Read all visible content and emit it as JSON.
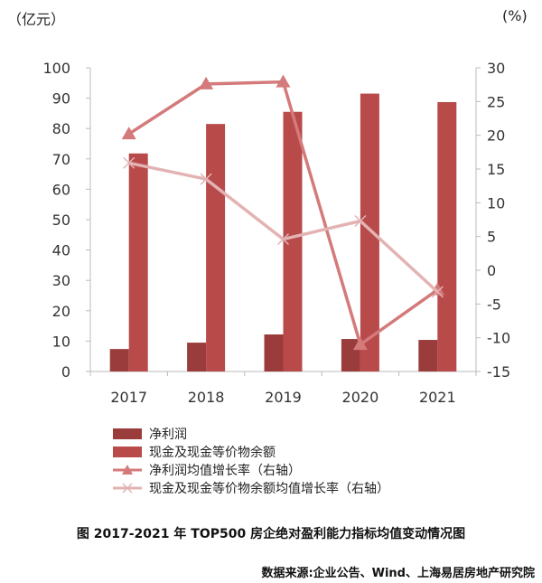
{
  "chart_data": {
    "type": "bar+line",
    "categories": [
      "2017",
      "2018",
      "2019",
      "2020",
      "2021"
    ],
    "left_unit": "（亿元）",
    "right_unit": "(%)",
    "ylim": [
      0,
      100
    ],
    "yticks": [
      0,
      10,
      20,
      30,
      40,
      50,
      60,
      70,
      80,
      90,
      100
    ],
    "y2lim": [
      -15,
      30
    ],
    "y2ticks": [
      -15,
      -10,
      -5,
      0,
      5,
      10,
      15,
      20,
      25,
      30
    ],
    "grid": false,
    "legend": "bottom",
    "series": [
      {
        "name": "净利润",
        "type": "bar",
        "axis": "left",
        "color": "#9b3c3c",
        "values": [
          7.4,
          9.5,
          12.2,
          10.7,
          10.4
        ]
      },
      {
        "name": "现金及现金等价物余额",
        "type": "bar",
        "axis": "left",
        "color": "#b84a4a",
        "values": [
          71.8,
          81.5,
          85.5,
          91.5,
          88.7
        ]
      },
      {
        "name": "净利润均值增长率（右轴）",
        "type": "line",
        "marker": "triangle",
        "axis": "right",
        "color": "#d47a7a",
        "values": [
          20.2,
          27.6,
          27.9,
          -11.0,
          -2.9
        ]
      },
      {
        "name": "现金及现金等价物余额均值增长率（右轴）",
        "type": "line",
        "marker": "x",
        "axis": "right",
        "color": "#e3b3b3",
        "values": [
          15.9,
          13.5,
          4.6,
          7.3,
          -3.2
        ]
      }
    ]
  },
  "caption": "图  2017-2021 年 TOP500 房企绝对盈利能力指标均值变动情况图",
  "source": "数据来源:企业公告、Wind、上海易居房地产研究院"
}
